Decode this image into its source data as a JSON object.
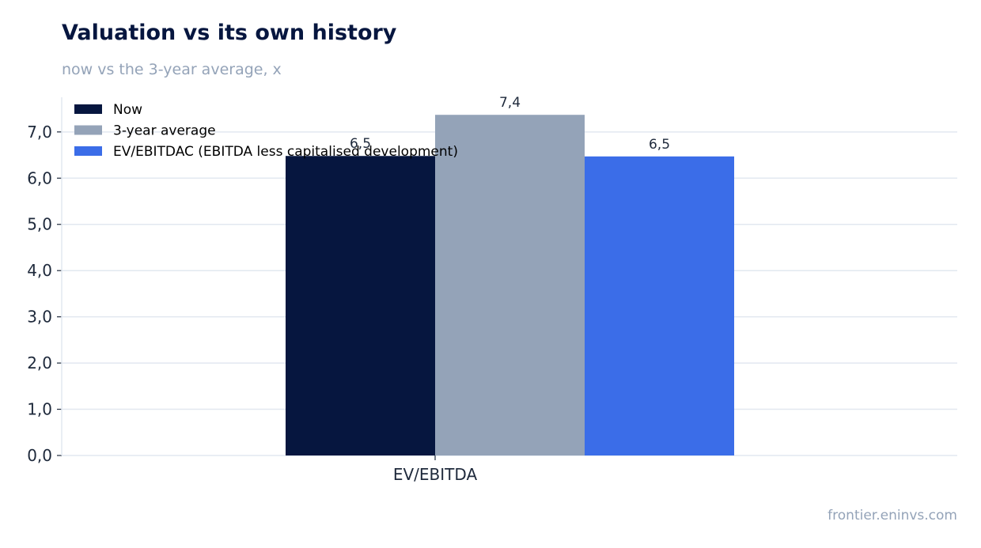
{
  "title": "Valuation vs its own history",
  "subtitle": "now vs the 3-year average, x",
  "source": "frontier.eninvs.com",
  "chart_data": {
    "type": "bar",
    "categories": [
      "EV/EBITDA"
    ],
    "series": [
      {
        "name": "Now",
        "values": [
          6.48
        ],
        "label": "6,5",
        "color": "#06163f"
      },
      {
        "name": "3-year average",
        "values": [
          7.37
        ],
        "label": "7,4",
        "color": "#94a3b8"
      },
      {
        "name": "EV/EBITDAC (EBITDA less capitalised development)",
        "values": [
          6.47
        ],
        "label": "6,5",
        "color": "#3b6de8"
      }
    ],
    "ylim": [
      0,
      7.75
    ],
    "yticks": [
      "0,0",
      "1,0",
      "2,0",
      "3,0",
      "4,0",
      "5,0",
      "6,0",
      "7,0"
    ],
    "grid": true,
    "legend_position": "top-left"
  }
}
